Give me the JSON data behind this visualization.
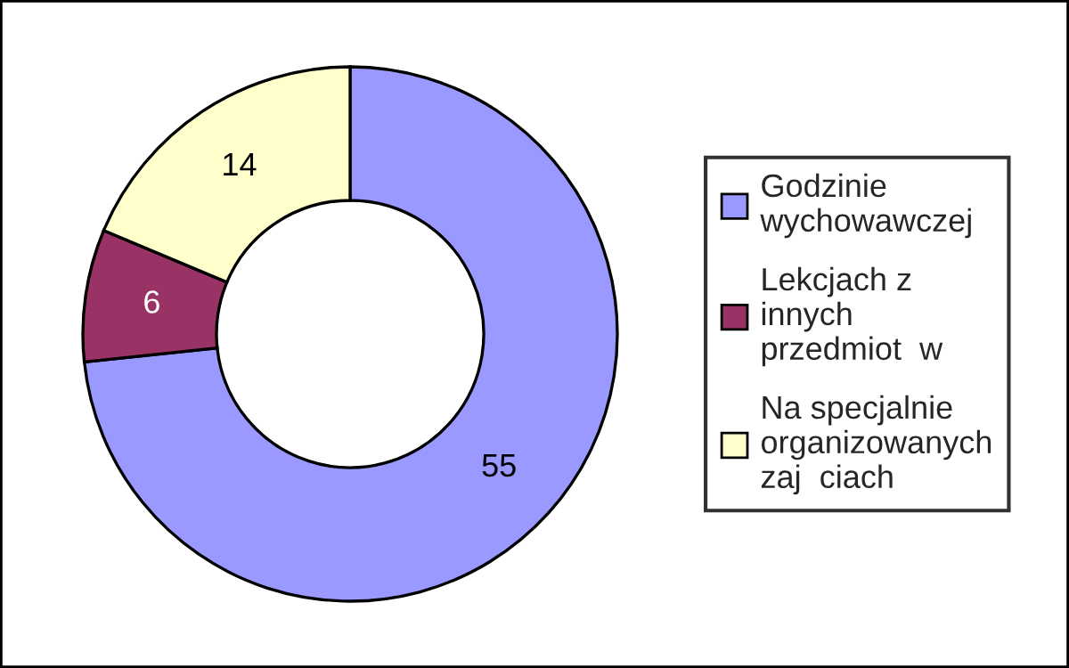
{
  "chart_data": {
    "type": "donut",
    "categories": [
      "Godzinie\nwychowawczej",
      "Lekcjach z\ninnych\nprzedmiot  w",
      "Na specjalnie\norganizowanych\nzaj  ciach"
    ],
    "values": [
      55,
      6,
      14
    ],
    "colors": [
      "#9999ff",
      "#993366",
      "#ffffcc"
    ],
    "data_labels": true,
    "legend": "right"
  }
}
